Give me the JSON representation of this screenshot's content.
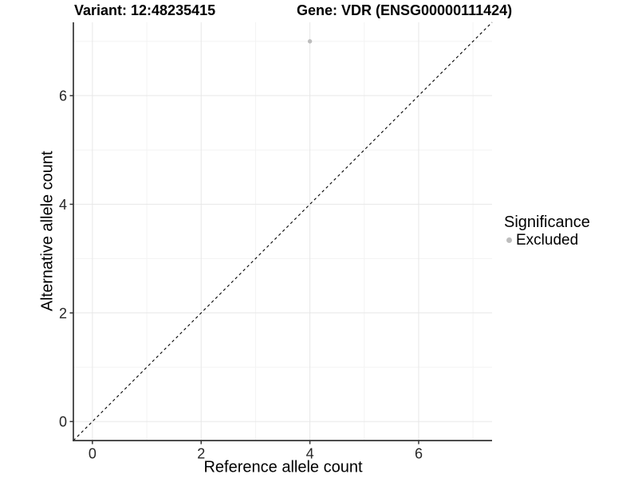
{
  "header": {
    "variant_title": "Variant: 12:48235415",
    "gene_title": "Gene: VDR (ENSG00000111424)"
  },
  "chart_data": {
    "type": "scatter",
    "xlabel": "Reference allele count",
    "ylabel": "Alternative allele count",
    "xlim": [
      -0.35,
      7.35
    ],
    "ylim": [
      -0.35,
      7.35
    ],
    "x_major_ticks": [
      0,
      2,
      4,
      6
    ],
    "y_major_ticks": [
      0,
      2,
      4,
      6
    ],
    "x_minor_ticks": [
      1,
      3,
      5,
      7
    ],
    "y_minor_ticks": [
      1,
      3,
      5,
      7
    ],
    "grid": "major and minor, light gray on white",
    "legend_position": "right",
    "series": [
      {
        "name": "Excluded",
        "color": "#bdbdbd",
        "marker": "circle",
        "points": [
          [
            4,
            7
          ]
        ]
      }
    ],
    "reference_line": {
      "description": "identity line y = x",
      "style": "dashed",
      "color": "#000000",
      "x1": -0.35,
      "y1": -0.35,
      "x2": 7.35,
      "y2": 7.35
    }
  },
  "legend": {
    "title": "Significance",
    "items": [
      {
        "label": "Excluded",
        "color": "#bdbdbd",
        "marker": "circle"
      }
    ]
  },
  "colors": {
    "background": "#ffffff",
    "grid_major": "#e7e7e7",
    "grid_minor": "#f3f3f3",
    "axis_line": "#333333",
    "tick_text": "#262626",
    "title_text": "#000000",
    "point": "#bdbdbd"
  }
}
